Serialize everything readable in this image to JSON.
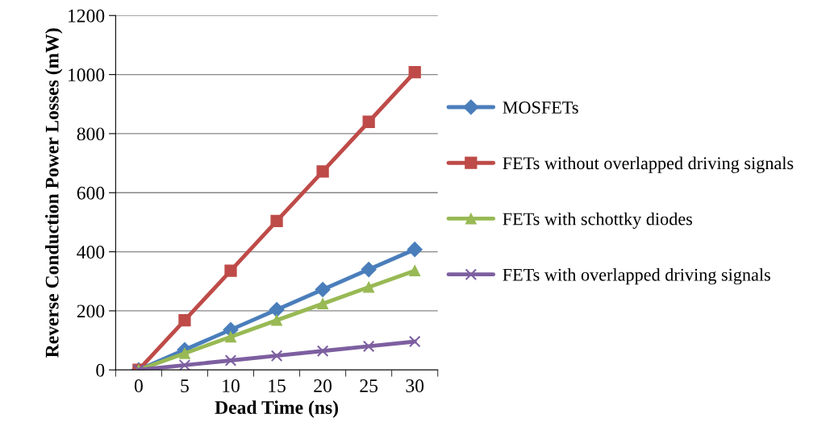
{
  "chart_data": {
    "type": "line",
    "xlabel": "Dead Time (ns)",
    "ylabel": "Reverse Conduction Power Losses (mW)",
    "categories": [
      "0",
      "5",
      "10",
      "15",
      "20",
      "25",
      "30"
    ],
    "series": [
      {
        "name": "MOSFETs",
        "color": "#4a7ebb",
        "marker": "diamond",
        "values": [
          0,
          68,
          136,
          204,
          272,
          340,
          408
        ]
      },
      {
        "name": "FETs without overlapped driving signals",
        "color": "#be4b48",
        "marker": "square",
        "values": [
          0,
          168,
          336,
          504,
          672,
          840,
          1008
        ]
      },
      {
        "name": "FETs with schottky diodes",
        "color": "#98b954",
        "marker": "triangle",
        "values": [
          0,
          56,
          112,
          168,
          224,
          280,
          336
        ]
      },
      {
        "name": "FETs with overlapped driving signals",
        "color": "#7d5fa0",
        "marker": "cross",
        "values": [
          0,
          16,
          32,
          48,
          64,
          80,
          96
        ]
      }
    ],
    "ylim": [
      0,
      1200
    ],
    "yticks": [
      0,
      200,
      400,
      600,
      800,
      1000,
      1200
    ],
    "grid": "y",
    "legend": "right"
  }
}
